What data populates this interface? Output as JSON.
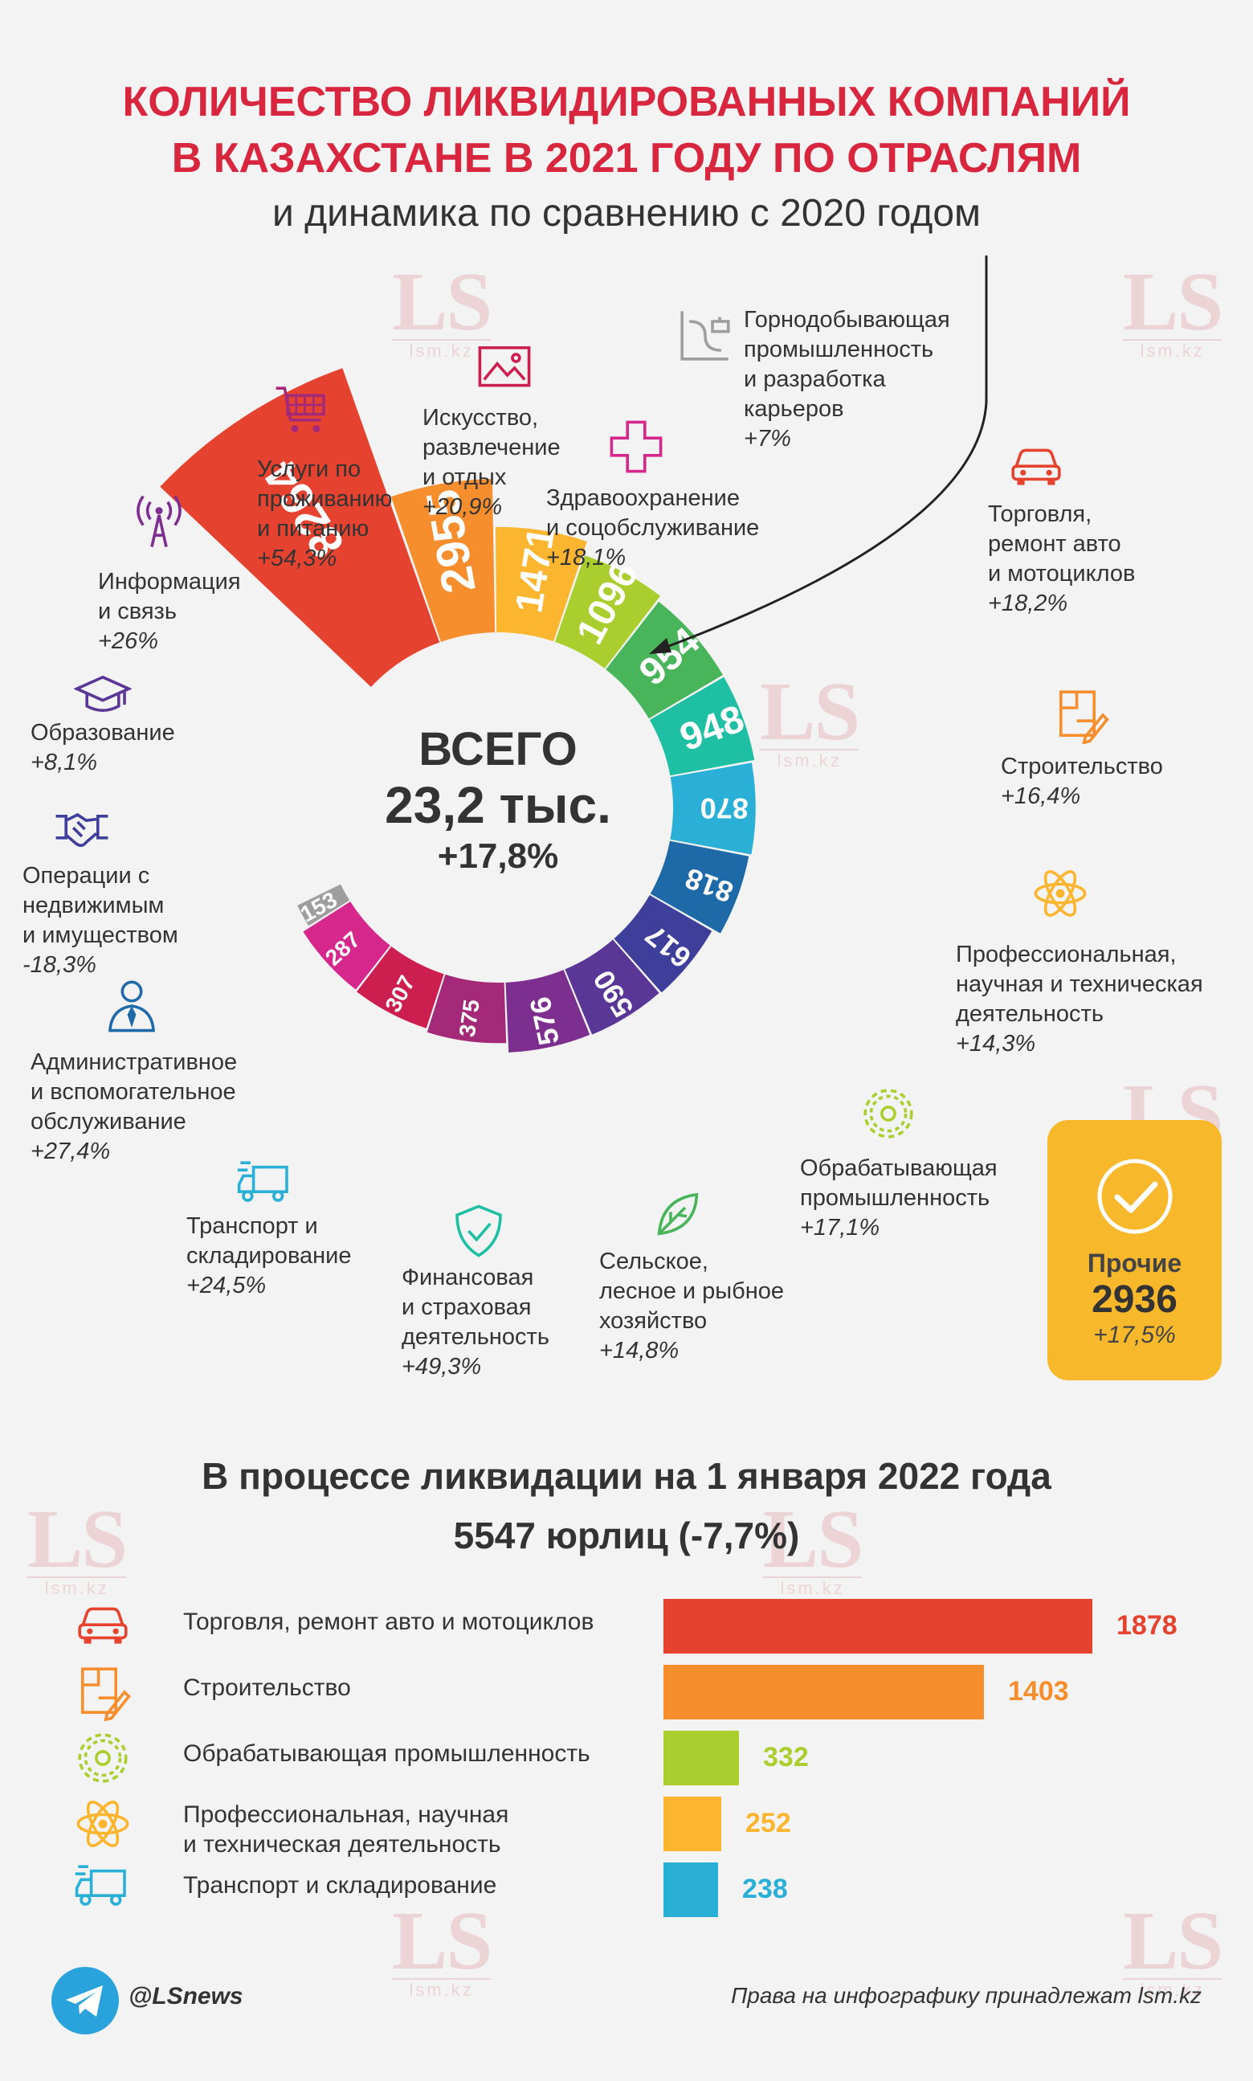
{
  "title_line1": "КОЛИЧЕСТВО ЛИКВИДИРОВАННЫХ КОМПАНИЙ",
  "title_line2": "В КАЗАХСТАНЕ В 2021 ГОДУ ПО ОТРАСЛЯМ",
  "subtitle": "и динамика по сравнению с 2020 годом",
  "watermark": {
    "big": "LS",
    "small": "lsm.kz"
  },
  "center": {
    "label": "ВСЕГО",
    "value": "23,2 тыс.",
    "change": "+17,8%"
  },
  "others": {
    "label": "Прочие",
    "value": "2936",
    "change": "+17,5%"
  },
  "chart_data": [
    {
      "type": "pie",
      "subtype": "radial-bar-donut",
      "title": "КОЛИЧЕСТВО ЛИКВИДИРОВАННЫХ КОМПАНИЙ В КАЗАХСТАНЕ В 2021 ГОДУ ПО ОТРАСЛЯМ",
      "subtitle": "и динамика по сравнению с 2020 годом",
      "series": [
        {
          "name": "Торговля, ремонт авто и мотоциклов",
          "value": 8264,
          "label_lines": [
            "Торговля,",
            "ремонт авто",
            "и мотоциклов"
          ],
          "change": "+18,2%",
          "color": "#e5432f",
          "icon": "car-icon"
        },
        {
          "name": "Строительство",
          "value": 2955,
          "label_lines": [
            "Строительство"
          ],
          "change": "+16,4%",
          "color": "#f68e2e",
          "icon": "blueprint-icon"
        },
        {
          "name": "Профессиональная, научная и техническая деятельность",
          "value": 1471,
          "label_lines": [
            "Профессиональная,",
            "научная и техническая",
            "деятельность"
          ],
          "change": "+14,3%",
          "color": "#fbb52f",
          "icon": "atom-icon"
        },
        {
          "name": "Обрабатывающая промышленность",
          "value": 1096,
          "label_lines": [
            "Обрабатывающая",
            "промышленность"
          ],
          "change": "+17,1%",
          "color": "#a9ce2d",
          "icon": "gear-icon"
        },
        {
          "name": "Сельское, лесное и рыбное хозяйство",
          "value": 954,
          "label_lines": [
            "Сельское,",
            "лесное и рыбное",
            "хозяйство"
          ],
          "change": "+14,8%",
          "color": "#49b55b",
          "icon": "leaf-icon"
        },
        {
          "name": "Финансовая и страховая деятельность",
          "value": 948,
          "label_lines": [
            "Финансовая",
            "и страховая",
            "деятельность"
          ],
          "change": "+49,3%",
          "color": "#1fbfa3",
          "icon": "shield-icon"
        },
        {
          "name": "Транспорт и складирование",
          "value": 870,
          "label_lines": [
            "Транспорт и",
            "складирование"
          ],
          "change": "+24,5%",
          "color": "#2ab0d7",
          "icon": "truck-icon"
        },
        {
          "name": "Административное и вспомогательное обслуживание",
          "value": 818,
          "label_lines": [
            "Административное",
            "и вспомогательное",
            "обслуживание"
          ],
          "change": "+27,4%",
          "color": "#1e6aa8",
          "icon": "person-icon"
        },
        {
          "name": "Операции с недвижимым и имуществом",
          "value": 617,
          "label_lines": [
            "Операции с",
            "недвижимым",
            "и имуществом"
          ],
          "change": "-18,3%",
          "color": "#3e3f9b",
          "icon": "handshake-icon"
        },
        {
          "name": "Образование",
          "value": 590,
          "label_lines": [
            "Образование"
          ],
          "change": "+8,1%",
          "color": "#5a3697",
          "icon": "graduation-cap-icon"
        },
        {
          "name": "Информация и связь",
          "value": 576,
          "label_lines": [
            "Информация",
            "и связь"
          ],
          "change": "+26%",
          "color": "#7c2f8e",
          "icon": "antenna-icon"
        },
        {
          "name": "Услуги по проживанию и питанию",
          "value": 375,
          "label_lines": [
            "Услуги по",
            "проживанию",
            "и питанию"
          ],
          "change": "+54,3%",
          "color": "#a42a79",
          "icon": "cart-icon"
        },
        {
          "name": "Искусство, развлечение и отдых",
          "value": 307,
          "label_lines": [
            "Искусство,",
            "развлечение",
            "и отдых"
          ],
          "change": "+20,9%",
          "color": "#cc1f4f",
          "icon": "picture-icon"
        },
        {
          "name": "Здравоохранение и соцобслуживание",
          "value": 287,
          "label_lines": [
            "Здравоохранение",
            "и соцобслуживание"
          ],
          "change": "+18,1%",
          "color": "#d6288c",
          "icon": "medical-cross-icon"
        },
        {
          "name": "Горнодобывающая промышленность и разработка карьеров",
          "value": 153,
          "label_lines": [
            "Горнодобывающая",
            "промышленность",
            "и разработка",
            "карьеров"
          ],
          "change": "+7%",
          "color": "#9e9e9e",
          "icon": "mining-icon"
        }
      ]
    },
    {
      "type": "bar",
      "orientation": "horizontal",
      "title": "В процессе ликвидации на 1 января 2022 года",
      "subtitle": "5547 юрлиц (-7,7%)",
      "categories": [
        "Торговля, ремонт авто и мотоциклов",
        "Строительство",
        "Обрабатывающая промышленность",
        "Профессиональная, научная и техническая деятельность",
        "Транспорт и складирование"
      ],
      "label_lines": [
        [
          "Торговля, ремонт авто и мотоциклов"
        ],
        [
          "Строительство"
        ],
        [
          "Обрабатывающая промышленность"
        ],
        [
          "Профессиональная, научная",
          "и техническая деятельность"
        ],
        [
          "Транспорт и складирование"
        ]
      ],
      "values": [
        1878,
        1403,
        332,
        252,
        238
      ],
      "colors": [
        "#e5432f",
        "#f68e2e",
        "#a9ce2d",
        "#fbb52f",
        "#2ab0d7"
      ],
      "icons": [
        "car-icon",
        "blueprint-icon",
        "gear-icon",
        "atom-icon",
        "truck-icon"
      ]
    }
  ],
  "footer": {
    "handle": "@LSnews",
    "rights": "Права на инфографику принадлежат lsm.kz"
  }
}
